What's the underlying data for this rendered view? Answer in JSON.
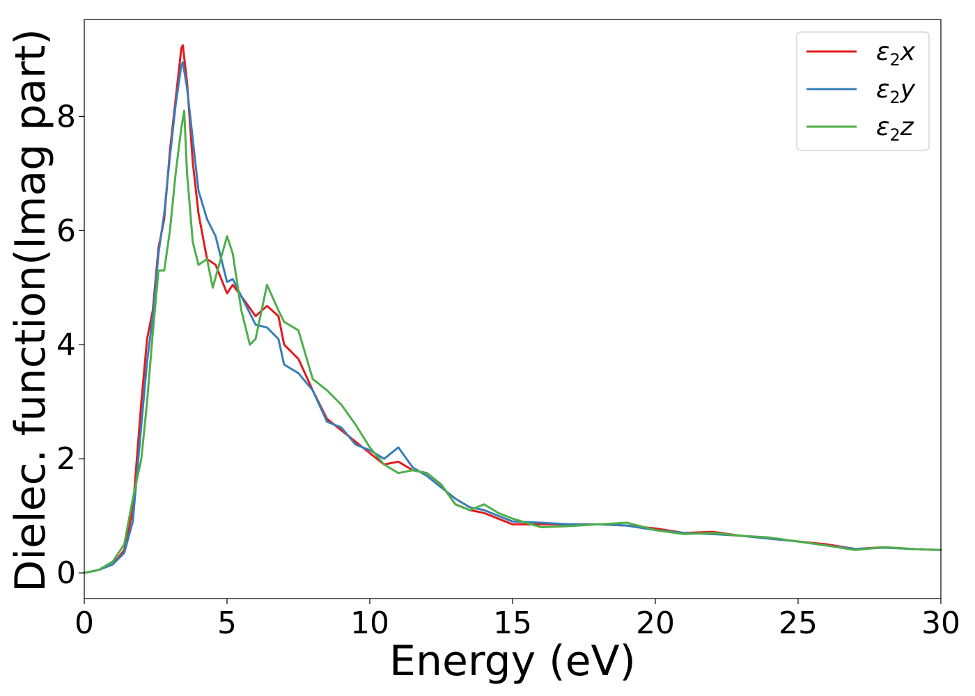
{
  "chart_data": {
    "type": "line",
    "title": "",
    "xlabel": "Energy (eV)",
    "ylabel": "Dielec. function(Imag part)",
    "xlim": [
      0,
      30
    ],
    "ylim": [
      -0.45,
      9.7
    ],
    "xticks": [
      0,
      5,
      10,
      15,
      20,
      25,
      30
    ],
    "yticks": [
      0,
      2,
      4,
      6,
      8
    ],
    "grid": false,
    "legend_position": "top-right",
    "series": [
      {
        "name": "ε2x",
        "legend": {
          "base": "ε",
          "sub": "2",
          "var": "x"
        },
        "color": "#e41a1c",
        "x": [
          0,
          0.5,
          1.0,
          1.4,
          1.7,
          2.0,
          2.2,
          2.4,
          2.6,
          2.8,
          3.0,
          3.2,
          3.4,
          3.45,
          3.6,
          3.8,
          4.0,
          4.3,
          4.6,
          5.0,
          5.2,
          5.5,
          6.0,
          6.4,
          6.8,
          7.0,
          7.5,
          8.0,
          8.5,
          9.0,
          9.5,
          10.0,
          10.5,
          11.0,
          11.5,
          12.0,
          12.5,
          13.0,
          13.5,
          14.0,
          14.5,
          15.0,
          16.0,
          17.0,
          18.0,
          19.0,
          20.0,
          21.0,
          22.0,
          23.0,
          24.0,
          25.0,
          26.0,
          27.0,
          28.0,
          29.0,
          30.0
        ],
        "y": [
          0,
          0.05,
          0.15,
          0.4,
          1.1,
          3.0,
          4.1,
          4.6,
          5.7,
          6.2,
          7.4,
          8.3,
          9.2,
          9.25,
          8.6,
          7.2,
          6.3,
          5.5,
          5.4,
          4.9,
          5.05,
          4.85,
          4.5,
          4.68,
          4.5,
          4.0,
          3.75,
          3.2,
          2.7,
          2.5,
          2.3,
          2.1,
          1.9,
          1.95,
          1.8,
          1.75,
          1.55,
          1.2,
          1.1,
          1.05,
          0.95,
          0.85,
          0.85,
          0.85,
          0.85,
          0.83,
          0.78,
          0.7,
          0.72,
          0.65,
          0.6,
          0.55,
          0.5,
          0.42,
          0.45,
          0.42,
          0.4
        ]
      },
      {
        "name": "ε2y",
        "legend": {
          "base": "ε",
          "sub": "2",
          "var": "y"
        },
        "color": "#377eb8",
        "x": [
          0,
          0.5,
          1.0,
          1.4,
          1.7,
          2.0,
          2.2,
          2.4,
          2.6,
          2.8,
          3.0,
          3.2,
          3.4,
          3.45,
          3.6,
          3.8,
          4.0,
          4.3,
          4.6,
          5.0,
          5.2,
          5.5,
          6.0,
          6.4,
          6.8,
          7.0,
          7.5,
          8.0,
          8.5,
          9.0,
          9.5,
          10.0,
          10.5,
          11.0,
          11.5,
          12.0,
          12.5,
          13.0,
          13.5,
          14.0,
          14.5,
          15.0,
          16.0,
          17.0,
          18.0,
          19.0,
          20.0,
          21.0,
          22.0,
          23.0,
          24.0,
          25.0,
          26.0,
          27.0,
          28.0,
          29.0,
          30.0
        ],
        "y": [
          0,
          0.05,
          0.15,
          0.35,
          0.9,
          2.6,
          3.7,
          4.5,
          5.6,
          6.3,
          7.3,
          8.2,
          8.9,
          8.95,
          8.5,
          7.6,
          6.7,
          6.2,
          5.9,
          5.1,
          5.15,
          4.85,
          4.35,
          4.3,
          4.1,
          3.65,
          3.5,
          3.2,
          2.65,
          2.55,
          2.25,
          2.15,
          2.0,
          2.2,
          1.85,
          1.7,
          1.5,
          1.3,
          1.15,
          1.1,
          1.0,
          0.9,
          0.88,
          0.85,
          0.85,
          0.83,
          0.75,
          0.7,
          0.68,
          0.65,
          0.6,
          0.55,
          0.48,
          0.42,
          0.44,
          0.42,
          0.4
        ]
      },
      {
        "name": "ε2z",
        "legend": {
          "base": "ε",
          "sub": "2",
          "var": "z"
        },
        "color": "#4daf4a",
        "x": [
          0,
          0.5,
          1.0,
          1.4,
          1.7,
          2.0,
          2.2,
          2.4,
          2.6,
          2.8,
          3.0,
          3.2,
          3.4,
          3.5,
          3.6,
          3.8,
          4.0,
          4.3,
          4.5,
          5.0,
          5.2,
          5.5,
          5.8,
          6.0,
          6.4,
          6.8,
          7.0,
          7.5,
          8.0,
          8.5,
          9.0,
          9.5,
          10.0,
          10.5,
          11.0,
          11.5,
          12.0,
          12.5,
          13.0,
          13.5,
          14.0,
          14.5,
          15.0,
          16.0,
          17.0,
          18.0,
          19.0,
          20.0,
          21.0,
          22.0,
          23.0,
          24.0,
          25.0,
          26.0,
          27.0,
          28.0,
          29.0,
          30.0
        ],
        "y": [
          0,
          0.05,
          0.2,
          0.5,
          1.3,
          2.0,
          3.0,
          4.2,
          5.3,
          5.3,
          6.0,
          7.0,
          7.8,
          8.1,
          7.0,
          5.8,
          5.4,
          5.5,
          5.0,
          5.9,
          5.6,
          4.6,
          4.0,
          4.1,
          5.05,
          4.6,
          4.4,
          4.25,
          3.4,
          3.2,
          2.95,
          2.6,
          2.2,
          1.9,
          1.75,
          1.8,
          1.75,
          1.55,
          1.2,
          1.1,
          1.2,
          1.05,
          0.95,
          0.8,
          0.82,
          0.85,
          0.88,
          0.75,
          0.68,
          0.7,
          0.65,
          0.62,
          0.55,
          0.48,
          0.4,
          0.45,
          0.42,
          0.4
        ]
      }
    ]
  }
}
